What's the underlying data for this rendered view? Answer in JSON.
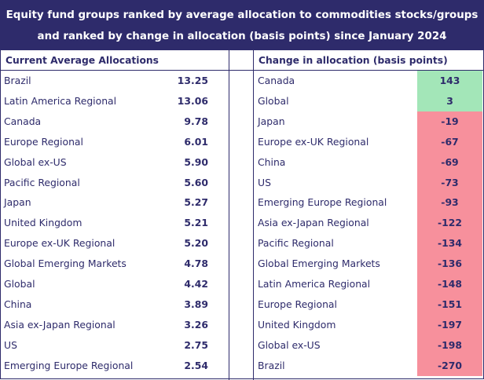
{
  "header": {
    "line1": "Equity fund groups ranked by average allocation to commodities stocks/groups",
    "line2": "and ranked by change in allocation (basis points) since January 2024"
  },
  "colors": {
    "navy": "#2e2b6b",
    "positive_fill": "#a3e6b8",
    "negative_fill": "#f7909c"
  },
  "chart_data": [
    {
      "type": "table",
      "title": "Current Average Allocations",
      "rows": [
        {
          "label": "Brazil",
          "value": "13.25"
        },
        {
          "label": "Latin America Regional",
          "value": "13.06"
        },
        {
          "label": "Canada",
          "value": "9.78"
        },
        {
          "label": "Europe Regional",
          "value": "6.01"
        },
        {
          "label": "Global ex-US",
          "value": "5.90"
        },
        {
          "label": "Pacific Regional",
          "value": "5.60"
        },
        {
          "label": "Japan",
          "value": "5.27"
        },
        {
          "label": "United Kingdom",
          "value": "5.21"
        },
        {
          "label": "Europe ex-UK Regional",
          "value": "5.20"
        },
        {
          "label": "Global Emerging Markets",
          "value": "4.78"
        },
        {
          "label": "Global",
          "value": "4.42"
        },
        {
          "label": "China",
          "value": "3.89"
        },
        {
          "label": "Asia ex-Japan Regional",
          "value": "3.26"
        },
        {
          "label": "US",
          "value": "2.75"
        },
        {
          "label": "Emerging Europe Regional",
          "value": "2.54"
        }
      ]
    },
    {
      "type": "table",
      "title": "Change in allocation (basis points)",
      "rows": [
        {
          "label": "Canada",
          "value": "143"
        },
        {
          "label": "Global",
          "value": "3"
        },
        {
          "label": "Japan",
          "value": "-19"
        },
        {
          "label": "Europe ex-UK Regional",
          "value": "-67"
        },
        {
          "label": "China",
          "value": "-69"
        },
        {
          "label": "US",
          "value": "-73"
        },
        {
          "label": "Emerging Europe Regional",
          "value": "-93"
        },
        {
          "label": "Asia ex-Japan Regional",
          "value": "-122"
        },
        {
          "label": "Pacific Regional",
          "value": "-134"
        },
        {
          "label": "Global Emerging Markets",
          "value": "-136"
        },
        {
          "label": "Latin America Regional",
          "value": "-148"
        },
        {
          "label": "Europe Regional",
          "value": "-151"
        },
        {
          "label": "United Kingdom",
          "value": "-197"
        },
        {
          "label": "Global ex-US",
          "value": "-198"
        },
        {
          "label": "Brazil",
          "value": "-270"
        }
      ]
    }
  ]
}
